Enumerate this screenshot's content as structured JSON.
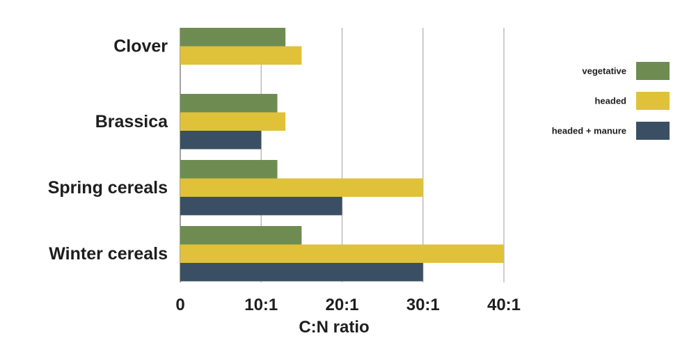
{
  "chart_data": {
    "type": "bar",
    "orientation": "horizontal",
    "categories": [
      "Clover",
      "Brassica",
      "Spring cereals",
      "Winter cereals"
    ],
    "series": [
      {
        "name": "vegetative",
        "color": "#6e8c52",
        "values": [
          13,
          12,
          12,
          15
        ]
      },
      {
        "name": "headed",
        "color": "#e0c13a",
        "values": [
          15,
          13,
          30,
          40
        ]
      },
      {
        "name": "headed + manure",
        "color": "#3a4f63",
        "values": [
          null,
          10,
          20,
          30
        ]
      }
    ],
    "xlabel": "C:N ratio",
    "xlim": [
      0,
      40
    ],
    "xticks": [
      0,
      10,
      20,
      30,
      40
    ],
    "xtick_labels": [
      "0",
      "10:1",
      "20:1",
      "30:1",
      "40:1"
    ],
    "grid": true,
    "legend_position": "right"
  }
}
